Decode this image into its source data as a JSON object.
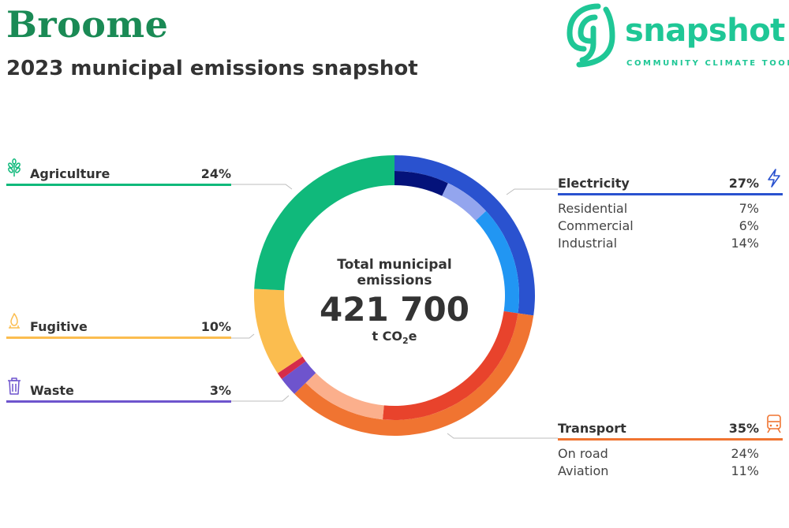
{
  "header": {
    "title": "Broome",
    "subtitle": "2023 municipal emissions snapshot"
  },
  "logo": {
    "word": "snapshot",
    "tagline": "COMMUNITY CLIMATE TOOL",
    "color": "#1fc796"
  },
  "center": {
    "title": "Total municipal emissions",
    "value": "421 700",
    "unit_prefix": "t CO",
    "unit_sub": "2",
    "unit_suffix": "e"
  },
  "chart_data": {
    "type": "donut",
    "title": "2023 municipal emissions snapshot",
    "total": "421 700",
    "unit": "t CO2e",
    "sectors": [
      {
        "name": "Electricity",
        "pct_label": "27%",
        "value": 27,
        "color": "#2a52cf",
        "icon": "lightning-icon",
        "subsectors": [
          {
            "name": "Residential",
            "pct_label": "7%",
            "value": 7,
            "color": "#04127a"
          },
          {
            "name": "Commercial",
            "pct_label": "6%",
            "value": 6,
            "color": "#93a5ee"
          },
          {
            "name": "Industrial",
            "pct_label": "14%",
            "value": 14,
            "color": "#2196f3"
          }
        ]
      },
      {
        "name": "Transport",
        "pct_label": "35%",
        "value": 35,
        "color": "#f07431",
        "icon": "train-icon",
        "subsectors": [
          {
            "name": "On road",
            "pct_label": "24%",
            "value": 24,
            "color": "#e8432c"
          },
          {
            "name": "Aviation",
            "pct_label": "11%",
            "value": 11,
            "color": "#fbaf8c"
          }
        ]
      },
      {
        "name": "Waste",
        "pct_label": "3%",
        "value": 3,
        "color": "#6e54cd",
        "icon": "bin-icon",
        "subsectors": [
          {
            "name": "",
            "pct_label": "",
            "value": 2.2,
            "color": "#6e54cd"
          },
          {
            "name": "",
            "pct_label": "",
            "value": 0.8,
            "color": "#d52c4a"
          }
        ]
      },
      {
        "name": "Fugitive",
        "pct_label": "10%",
        "value": 10,
        "color": "#fbbd4f",
        "icon": "flame-icon",
        "subsectors": []
      },
      {
        "name": "Agriculture",
        "pct_label": "24%",
        "value": 24,
        "color": "#10b97b",
        "icon": "wheat-icon",
        "subsectors": []
      }
    ]
  }
}
